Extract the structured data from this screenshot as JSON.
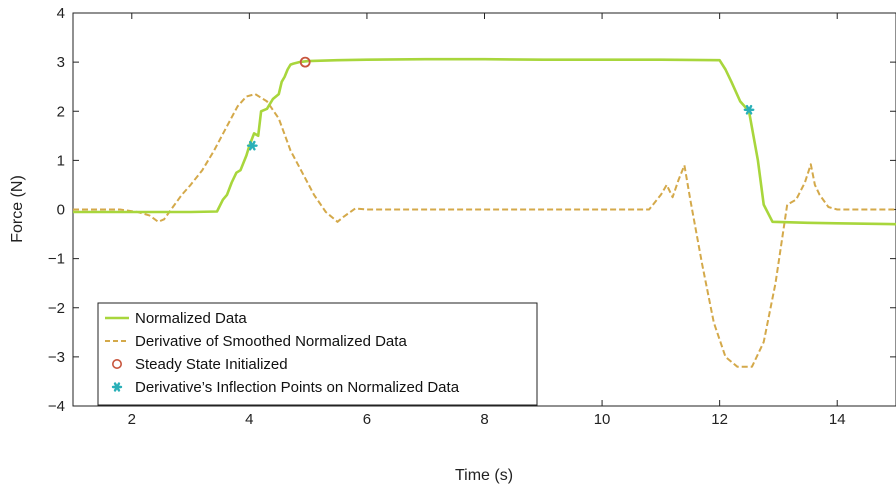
{
  "chart_data": {
    "type": "line",
    "title": "",
    "xlabel": "Time (s)",
    "ylabel": "Force (N)",
    "xlim": [
      1.0,
      15.0
    ],
    "ylim": [
      -4,
      4
    ],
    "xticks": [
      2,
      4,
      6,
      8,
      10,
      12,
      14
    ],
    "yticks": [
      -4,
      -3,
      -2,
      -1,
      0,
      1,
      2,
      3,
      4
    ],
    "xtick_labels": [
      "2",
      "4",
      "6",
      "8",
      "10",
      "12",
      "14"
    ],
    "ytick_labels": [
      "−4",
      "−3",
      "−2",
      "−1",
      "0",
      "1",
      "2",
      "3",
      "4"
    ],
    "grid": false,
    "legend_position": "bottom-left",
    "series": [
      {
        "name": "Normalized Data",
        "style": "solid",
        "color": "#a8d63c",
        "x": [
          1.0,
          2.0,
          3.0,
          3.45,
          3.55,
          3.62,
          3.7,
          3.78,
          3.85,
          3.95,
          4.0,
          4.08,
          4.15,
          4.2,
          4.3,
          4.4,
          4.5,
          4.55,
          4.6,
          4.65,
          4.7,
          4.75,
          4.85,
          5.0,
          5.5,
          6.0,
          7.0,
          8.0,
          9.0,
          10.0,
          11.0,
          12.0,
          12.1,
          12.2,
          12.35,
          12.5,
          12.65,
          12.75,
          12.9,
          13.5,
          14.0,
          15.0
        ],
        "y": [
          -0.05,
          -0.05,
          -0.05,
          -0.04,
          0.2,
          0.3,
          0.55,
          0.75,
          0.8,
          1.1,
          1.3,
          1.55,
          1.5,
          2.0,
          2.05,
          2.25,
          2.35,
          2.6,
          2.7,
          2.85,
          2.95,
          2.97,
          3.0,
          3.02,
          3.04,
          3.05,
          3.06,
          3.06,
          3.05,
          3.05,
          3.05,
          3.04,
          2.85,
          2.6,
          2.2,
          2.0,
          1.0,
          0.1,
          -0.25,
          -0.27,
          -0.28,
          -0.3
        ]
      },
      {
        "name": "Derivative of Smoothed Normalized Data",
        "style": "dashed",
        "color": "#d4a94a",
        "x": [
          1.0,
          1.8,
          2.1,
          2.3,
          2.45,
          2.55,
          2.7,
          2.85,
          3.0,
          3.2,
          3.4,
          3.6,
          3.8,
          3.95,
          4.1,
          4.3,
          4.5,
          4.7,
          4.9,
          5.1,
          5.3,
          5.5,
          5.6,
          5.8,
          6.0,
          7.0,
          8.0,
          9.0,
          10.0,
          10.8,
          11.0,
          11.1,
          11.2,
          11.3,
          11.4,
          11.5,
          11.7,
          11.9,
          12.1,
          12.3,
          12.55,
          12.75,
          12.95,
          13.15,
          13.3,
          13.45,
          13.55,
          13.62,
          13.7,
          13.85,
          14.0,
          15.0
        ],
        "y": [
          0.0,
          0.0,
          -0.05,
          -0.12,
          -0.25,
          -0.2,
          0.05,
          0.3,
          0.5,
          0.8,
          1.2,
          1.65,
          2.1,
          2.3,
          2.35,
          2.2,
          1.85,
          1.2,
          0.75,
          0.3,
          -0.05,
          -0.25,
          -0.15,
          0.02,
          0.0,
          0.0,
          0.0,
          0.0,
          0.0,
          0.0,
          0.3,
          0.5,
          0.25,
          0.6,
          0.9,
          0.2,
          -1.1,
          -2.3,
          -3.0,
          -3.2,
          -3.2,
          -2.7,
          -1.5,
          0.1,
          0.2,
          0.55,
          0.92,
          0.5,
          0.3,
          0.05,
          0.0,
          0.0
        ]
      }
    ],
    "points": [
      {
        "name": "Steady State Initialized",
        "marker": "circle",
        "color": "#c8553d",
        "x": [
          4.95
        ],
        "y": [
          3.0
        ]
      },
      {
        "name": "Derivative’s Inflection Points on Normalized Data",
        "marker": "star",
        "color": "#2ab0b8",
        "x": [
          4.05,
          12.5
        ],
        "y": [
          1.3,
          2.03
        ]
      }
    ],
    "legend": [
      "Normalized Data",
      "Derivative of Smoothed Normalized Data",
      "Steady State Initialized",
      "Derivative’s Inflection Points on Normalized Data"
    ]
  }
}
